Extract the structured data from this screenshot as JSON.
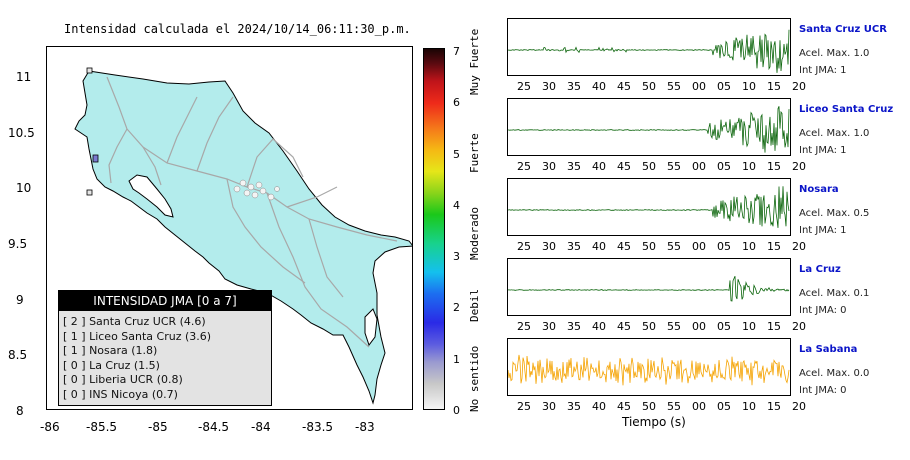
{
  "map": {
    "title": "Intensidad calculada el 2024/10/14_06:11:30_p.m.",
    "x_ticks": [
      "-86",
      "-85.5",
      "-85",
      "-84.5",
      "-84",
      "-83.5",
      "-83"
    ],
    "y_ticks": [
      "11",
      "10.5",
      "10",
      "9.5",
      "9",
      "8.5",
      "8"
    ],
    "land_color": "#b3ecec",
    "road_color": "#a8a8a8"
  },
  "legend": {
    "title": "INTENSIDAD JMA [0 a 7]",
    "items": [
      {
        "label": "[ 2 ]  Santa Cruz UCR (4.6)"
      },
      {
        "label": "[ 1 ]  Liceo Santa Cruz (3.6)"
      },
      {
        "label": "[ 1 ]  Nosara (1.8)"
      },
      {
        "label": "[ 0 ]  La Cruz (1.5)"
      },
      {
        "label": "[ 0 ]  Liberia UCR (0.8)"
      },
      {
        "label": "[ 0 ]  INS Nicoya (0.7)"
      }
    ]
  },
  "colorbar": {
    "ticks": [
      "0",
      "1",
      "2",
      "3",
      "4",
      "5",
      "6",
      "7"
    ],
    "words": [
      "No sentido",
      "Debil",
      "Moderado",
      "Fuerte",
      "Muy Fuerte"
    ]
  },
  "waveforms": {
    "time_ticks": [
      "25",
      "30",
      "35",
      "40",
      "45",
      "50",
      "55",
      "00",
      "05",
      "10",
      "15",
      "20"
    ],
    "xlabel": "Tiempo (s)",
    "stations": [
      {
        "name": "Santa Cruz UCR",
        "accel": "Acel. Max. 1.0",
        "jma": "Int JMA: 1",
        "color": "#0a640a"
      },
      {
        "name": "Liceo Santa Cruz",
        "accel": "Acel. Max. 1.0",
        "jma": "Int JMA: 1",
        "color": "#0a640a"
      },
      {
        "name": "Nosara",
        "accel": "Acel. Max. 0.5",
        "jma": "Int JMA: 1",
        "color": "#0a640a"
      },
      {
        "name": "La Cruz",
        "accel": "Acel. Max. 0.1",
        "jma": "Int JMA: 0",
        "color": "#0a640a"
      },
      {
        "name": "La Sabana",
        "accel": "Acel. Max. 0.0",
        "jma": "Int JMA: 0",
        "color": "#f5a300"
      }
    ]
  }
}
